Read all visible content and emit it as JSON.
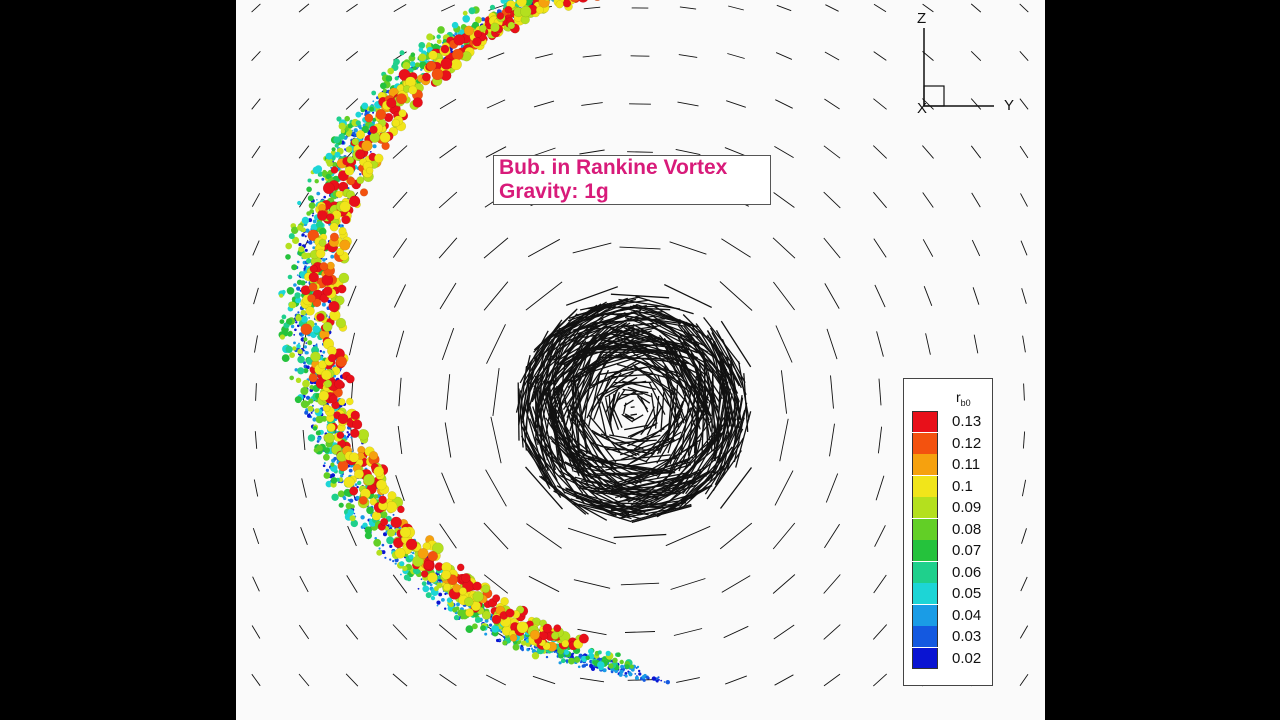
{
  "title": {
    "line1": "Bub. in Rankine Vortex",
    "line2": "Gravity: 1g",
    "color": "#d81b7a"
  },
  "axes": {
    "z_label": "Z",
    "y_label": "Y",
    "x_label": "X"
  },
  "legend": {
    "title_main": "r",
    "title_sub": "b0",
    "entries": [
      {
        "label": "0.13",
        "color": "#e8101a"
      },
      {
        "label": "0.12",
        "color": "#f3520f"
      },
      {
        "label": "0.11",
        "color": "#f6a10e"
      },
      {
        "label": "0.1",
        "color": "#f1e51a"
      },
      {
        "label": "0.09",
        "color": "#b4e01e"
      },
      {
        "label": "0.08",
        "color": "#62cf26"
      },
      {
        "label": "0.07",
        "color": "#25c23c"
      },
      {
        "label": "0.06",
        "color": "#1fd08c"
      },
      {
        "label": "0.05",
        "color": "#1dd5d6"
      },
      {
        "label": "0.04",
        "color": "#1a9ce6"
      },
      {
        "label": "0.03",
        "color": "#1459e0"
      },
      {
        "label": "0.02",
        "color": "#0a14d2"
      }
    ]
  },
  "colors": {
    "background": "#fafafa",
    "vectors": "#111111"
  }
}
